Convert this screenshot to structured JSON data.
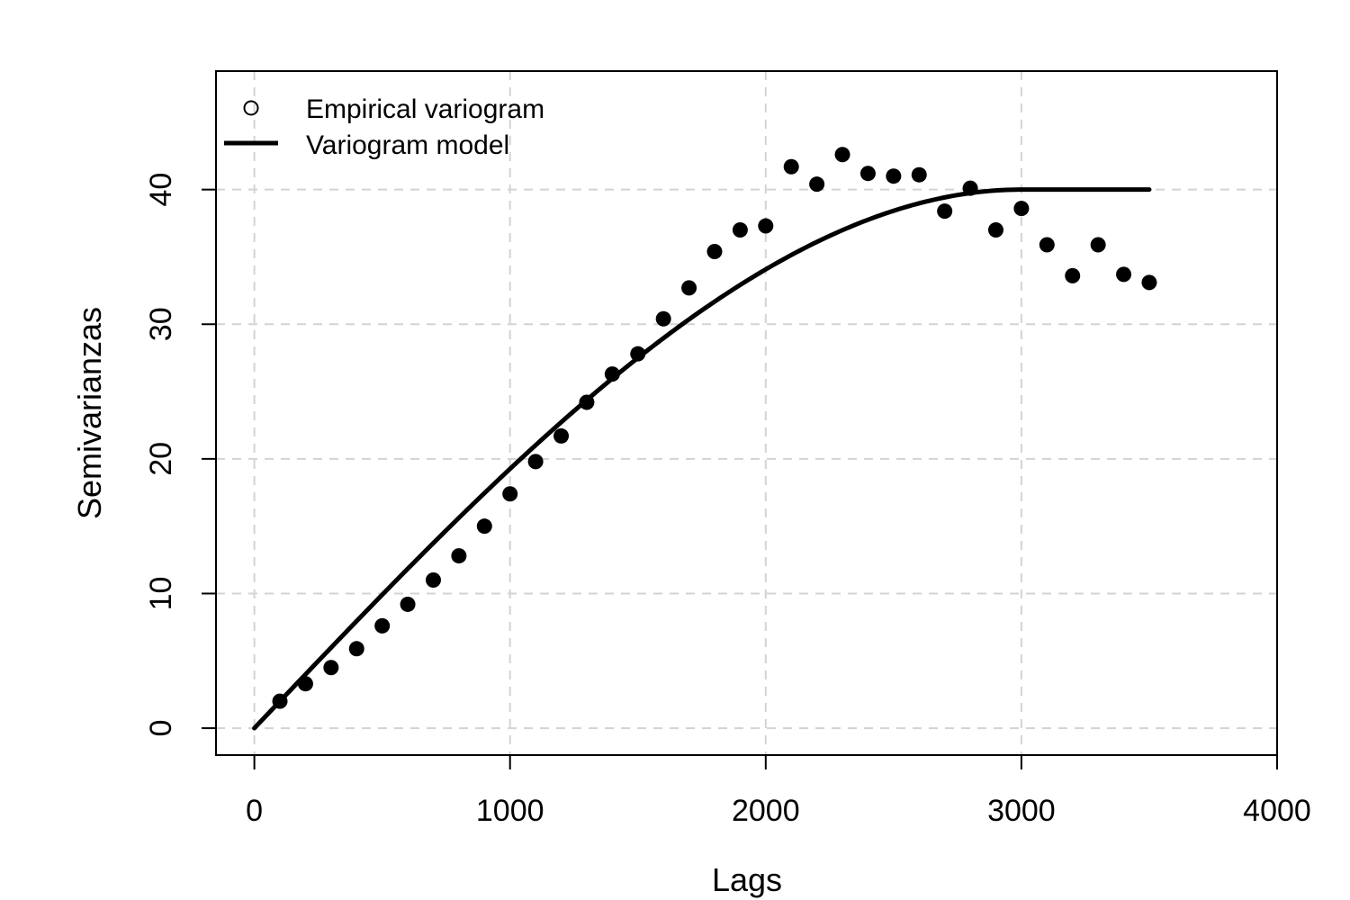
{
  "chart_data": {
    "type": "scatter",
    "xlabel": "Lags",
    "ylabel": "Semivarianzas",
    "xlim": [
      -150,
      4000
    ],
    "ylim": [
      -2,
      48.8
    ],
    "x_ticks": [
      0,
      1000,
      2000,
      3000,
      4000
    ],
    "y_ticks": [
      0,
      10,
      20,
      30,
      40
    ],
    "grid": true,
    "legend_position": "top-left",
    "legend": [
      {
        "label": "Empirical variogram",
        "symbol": "open-circle"
      },
      {
        "label": "Variogram model",
        "symbol": "line"
      }
    ],
    "series": [
      {
        "name": "Empirical variogram",
        "type": "scatter",
        "color": "#000000",
        "x": [
          100,
          200,
          300,
          400,
          500,
          600,
          700,
          800,
          900,
          1000,
          1100,
          1200,
          1300,
          1400,
          1500,
          1600,
          1700,
          1800,
          1900,
          2000,
          2100,
          2200,
          2300,
          2400,
          2500,
          2600,
          2700,
          2800,
          2900,
          3000,
          3100,
          3200,
          3300,
          3400,
          3500
        ],
        "y": [
          2.0,
          3.3,
          4.5,
          5.9,
          7.6,
          9.2,
          11.0,
          12.8,
          15.0,
          17.4,
          19.8,
          21.7,
          24.2,
          26.3,
          27.8,
          30.4,
          32.7,
          35.4,
          37.0,
          37.3,
          41.7,
          40.4,
          42.6,
          41.2,
          41.0,
          41.1,
          38.4,
          40.1,
          37.0,
          38.6,
          35.9,
          33.6,
          35.9,
          33.7,
          33.1
        ]
      },
      {
        "name": "Variogram model",
        "type": "line",
        "model": "spherical",
        "nugget": 0,
        "sill": 40,
        "range": 3000,
        "x_max": 3500,
        "color": "#000000"
      }
    ]
  }
}
